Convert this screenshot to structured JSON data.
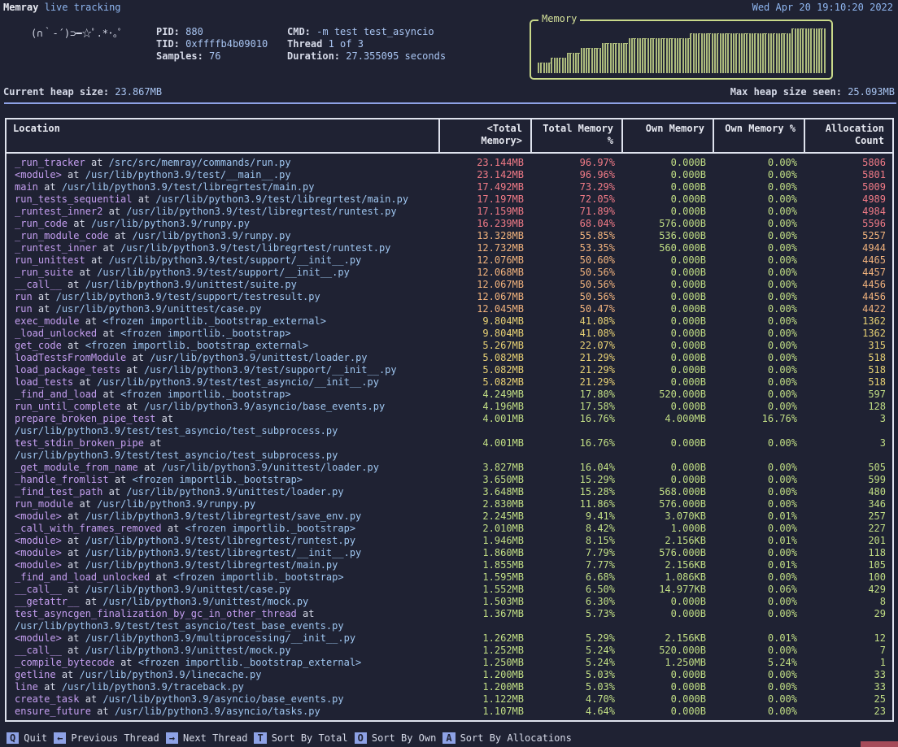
{
  "header": {
    "app_name": "Memray",
    "app_subtitle": "live tracking",
    "datetime": "Wed Apr 20 19:10:20 2022",
    "logo_text": "(∩｀-´)⊃━☆ﾟ.*･｡ﾟ",
    "pid_label": "PID:",
    "pid_value": "880",
    "tid_label": "TID:",
    "tid_value": "0xffffb4b09010",
    "samples_label": "Samples:",
    "samples_value": "76",
    "cmd_label": "CMD:",
    "cmd_value": "-m test test_asyncio",
    "thread_label": "Thread",
    "thread_value": "1 of 3",
    "duration_label": "Duration:",
    "duration_value": "27.355095 seconds"
  },
  "memory_graph": {
    "title": "Memory",
    "color": "#c9d98a"
  },
  "heap": {
    "current_label": "Current heap size:",
    "current_value": "23.867MB",
    "max_label": "Max heap size seen:",
    "max_value": "25.093MB",
    "progress_fraction": 0.951
  },
  "table": {
    "headers": [
      "Location",
      "<Total Memory>",
      "Total Memory %",
      "Own Memory",
      "Own Memory %",
      "Allocation Count"
    ],
    "rows": [
      {
        "fn": "_run_tracker",
        "path": "/src/src/memray/commands/run.py",
        "total": "23.144MB",
        "pct": "96.97%",
        "own": "0.000B",
        "ownpct": "0.00%",
        "count": "5806",
        "tone": "red"
      },
      {
        "fn": "<module>",
        "path": "/usr/lib/python3.9/test/__main__.py",
        "total": "23.142MB",
        "pct": "96.96%",
        "own": "0.000B",
        "ownpct": "0.00%",
        "count": "5801",
        "tone": "red"
      },
      {
        "fn": "main",
        "path": "/usr/lib/python3.9/test/libregrtest/main.py",
        "total": "17.492MB",
        "pct": "73.29%",
        "own": "0.000B",
        "ownpct": "0.00%",
        "count": "5009",
        "tone": "red"
      },
      {
        "fn": "run_tests_sequential",
        "path": "/usr/lib/python3.9/test/libregrtest/main.py",
        "total": "17.197MB",
        "pct": "72.05%",
        "own": "0.000B",
        "ownpct": "0.00%",
        "count": "4989",
        "tone": "red"
      },
      {
        "fn": "_runtest_inner2",
        "path": "/usr/lib/python3.9/test/libregrtest/runtest.py",
        "total": "17.159MB",
        "pct": "71.89%",
        "own": "0.000B",
        "ownpct": "0.00%",
        "count": "4984",
        "tone": "red"
      },
      {
        "fn": "_run_code",
        "path": "/usr/lib/python3.9/runpy.py",
        "total": "16.239MB",
        "pct": "68.04%",
        "own": "576.000B",
        "ownpct": "0.00%",
        "count": "5596",
        "tone": "red"
      },
      {
        "fn": "_run_module_code",
        "path": "/usr/lib/python3.9/runpy.py",
        "total": "13.328MB",
        "pct": "55.85%",
        "own": "536.000B",
        "ownpct": "0.00%",
        "count": "5257",
        "tone": "orange"
      },
      {
        "fn": "_runtest_inner",
        "path": "/usr/lib/python3.9/test/libregrtest/runtest.py",
        "total": "12.732MB",
        "pct": "53.35%",
        "own": "560.000B",
        "ownpct": "0.00%",
        "count": "4944",
        "tone": "orange"
      },
      {
        "fn": "run_unittest",
        "path": "/usr/lib/python3.9/test/support/__init__.py",
        "total": "12.076MB",
        "pct": "50.60%",
        "own": "0.000B",
        "ownpct": "0.00%",
        "count": "4465",
        "tone": "orange"
      },
      {
        "fn": "_run_suite",
        "path": "/usr/lib/python3.9/test/support/__init__.py",
        "total": "12.068MB",
        "pct": "50.56%",
        "own": "0.000B",
        "ownpct": "0.00%",
        "count": "4457",
        "tone": "orange"
      },
      {
        "fn": "__call__",
        "path": "/usr/lib/python3.9/unittest/suite.py",
        "total": "12.067MB",
        "pct": "50.56%",
        "own": "0.000B",
        "ownpct": "0.00%",
        "count": "4456",
        "tone": "orange"
      },
      {
        "fn": "run",
        "path": "/usr/lib/python3.9/test/support/testresult.py",
        "total": "12.067MB",
        "pct": "50.56%",
        "own": "0.000B",
        "ownpct": "0.00%",
        "count": "4456",
        "tone": "orange"
      },
      {
        "fn": "run",
        "path": "/usr/lib/python3.9/unittest/case.py",
        "total": "12.045MB",
        "pct": "50.47%",
        "own": "0.000B",
        "ownpct": "0.00%",
        "count": "4422",
        "tone": "orange"
      },
      {
        "fn": "exec_module",
        "path": "<frozen importlib._bootstrap_external>",
        "total": "9.804MB",
        "pct": "41.08%",
        "own": "0.000B",
        "ownpct": "0.00%",
        "count": "1362",
        "tone": "yellow"
      },
      {
        "fn": "_load_unlocked",
        "path": "<frozen importlib._bootstrap>",
        "total": "9.804MB",
        "pct": "41.08%",
        "own": "0.000B",
        "ownpct": "0.00%",
        "count": "1362",
        "tone": "yellow"
      },
      {
        "fn": "get_code",
        "path": "<frozen importlib._bootstrap_external>",
        "total": "5.267MB",
        "pct": "22.07%",
        "own": "0.000B",
        "ownpct": "0.00%",
        "count": "315",
        "tone": "yellow"
      },
      {
        "fn": "loadTestsFromModule",
        "path": "/usr/lib/python3.9/unittest/loader.py",
        "total": "5.082MB",
        "pct": "21.29%",
        "own": "0.000B",
        "ownpct": "0.00%",
        "count": "518",
        "tone": "yellow"
      },
      {
        "fn": "load_package_tests",
        "path": "/usr/lib/python3.9/test/support/__init__.py",
        "total": "5.082MB",
        "pct": "21.29%",
        "own": "0.000B",
        "ownpct": "0.00%",
        "count": "518",
        "tone": "yellow"
      },
      {
        "fn": "load_tests",
        "path": "/usr/lib/python3.9/test/test_asyncio/__init__.py",
        "total": "5.082MB",
        "pct": "21.29%",
        "own": "0.000B",
        "ownpct": "0.00%",
        "count": "518",
        "tone": "yellow"
      },
      {
        "fn": "_find_and_load",
        "path": "<frozen importlib._bootstrap>",
        "total": "4.249MB",
        "pct": "17.80%",
        "own": "520.000B",
        "ownpct": "0.00%",
        "count": "597",
        "tone": "green"
      },
      {
        "fn": "run_until_complete",
        "path": "/usr/lib/python3.9/asyncio/base_events.py",
        "total": "4.196MB",
        "pct": "17.58%",
        "own": "0.000B",
        "ownpct": "0.00%",
        "count": "128",
        "tone": "green"
      },
      {
        "fn": "prepare_broken_pipe_test",
        "path": "/usr/lib/python3.9/test/test_asyncio/test_subprocess.py",
        "total": "4.001MB",
        "pct": "16.76%",
        "own": "4.000MB",
        "ownpct": "16.76%",
        "count": "3",
        "tone": "green",
        "wrap": true
      },
      {
        "fn": "test_stdin_broken_pipe",
        "path": "/usr/lib/python3.9/test/test_asyncio/test_subprocess.py",
        "total": "4.001MB",
        "pct": "16.76%",
        "own": "0.000B",
        "ownpct": "0.00%",
        "count": "3",
        "tone": "green",
        "wrap": true
      },
      {
        "fn": "_get_module_from_name",
        "path": "/usr/lib/python3.9/unittest/loader.py",
        "total": "3.827MB",
        "pct": "16.04%",
        "own": "0.000B",
        "ownpct": "0.00%",
        "count": "505",
        "tone": "green"
      },
      {
        "fn": "_handle_fromlist",
        "path": "<frozen importlib._bootstrap>",
        "total": "3.650MB",
        "pct": "15.29%",
        "own": "0.000B",
        "ownpct": "0.00%",
        "count": "599",
        "tone": "green"
      },
      {
        "fn": "_find_test_path",
        "path": "/usr/lib/python3.9/unittest/loader.py",
        "total": "3.648MB",
        "pct": "15.28%",
        "own": "568.000B",
        "ownpct": "0.00%",
        "count": "480",
        "tone": "green"
      },
      {
        "fn": "run_module",
        "path": "/usr/lib/python3.9/runpy.py",
        "total": "2.830MB",
        "pct": "11.86%",
        "own": "576.000B",
        "ownpct": "0.00%",
        "count": "346",
        "tone": "green"
      },
      {
        "fn": "<module>",
        "path": "/usr/lib/python3.9/test/libregrtest/save_env.py",
        "total": "2.245MB",
        "pct": "9.41%",
        "own": "3.070KB",
        "ownpct": "0.01%",
        "count": "257",
        "tone": "green"
      },
      {
        "fn": "_call_with_frames_removed",
        "path": "<frozen importlib._bootstrap>",
        "total": "2.010MB",
        "pct": "8.42%",
        "own": "1.000B",
        "ownpct": "0.00%",
        "count": "227",
        "tone": "green"
      },
      {
        "fn": "<module>",
        "path": "/usr/lib/python3.9/test/libregrtest/runtest.py",
        "total": "1.946MB",
        "pct": "8.15%",
        "own": "2.156KB",
        "ownpct": "0.01%",
        "count": "201",
        "tone": "green"
      },
      {
        "fn": "<module>",
        "path": "/usr/lib/python3.9/test/libregrtest/__init__.py",
        "total": "1.860MB",
        "pct": "7.79%",
        "own": "576.000B",
        "ownpct": "0.00%",
        "count": "118",
        "tone": "green"
      },
      {
        "fn": "<module>",
        "path": "/usr/lib/python3.9/test/libregrtest/main.py",
        "total": "1.855MB",
        "pct": "7.77%",
        "own": "2.156KB",
        "ownpct": "0.01%",
        "count": "105",
        "tone": "green"
      },
      {
        "fn": "_find_and_load_unlocked",
        "path": "<frozen importlib._bootstrap>",
        "total": "1.595MB",
        "pct": "6.68%",
        "own": "1.086KB",
        "ownpct": "0.00%",
        "count": "100",
        "tone": "green"
      },
      {
        "fn": "__call__",
        "path": "/usr/lib/python3.9/unittest/case.py",
        "total": "1.552MB",
        "pct": "6.50%",
        "own": "14.977KB",
        "ownpct": "0.06%",
        "count": "429",
        "tone": "green"
      },
      {
        "fn": "__getattr__",
        "path": "/usr/lib/python3.9/unittest/mock.py",
        "total": "1.503MB",
        "pct": "6.30%",
        "own": "0.000B",
        "ownpct": "0.00%",
        "count": "8",
        "tone": "green"
      },
      {
        "fn": "test_asyncgen_finalization_by_gc_in_other_thread",
        "path": "/usr/lib/python3.9/test/test_asyncio/test_base_events.py",
        "total": "1.367MB",
        "pct": "5.73%",
        "own": "0.000B",
        "ownpct": "0.00%",
        "count": "29",
        "tone": "green",
        "wrap": true
      },
      {
        "fn": "<module>",
        "path": "/usr/lib/python3.9/multiprocessing/__init__.py",
        "total": "1.262MB",
        "pct": "5.29%",
        "own": "2.156KB",
        "ownpct": "0.01%",
        "count": "12",
        "tone": "green"
      },
      {
        "fn": "__call__",
        "path": "/usr/lib/python3.9/unittest/mock.py",
        "total": "1.252MB",
        "pct": "5.24%",
        "own": "520.000B",
        "ownpct": "0.00%",
        "count": "7",
        "tone": "green"
      },
      {
        "fn": "_compile_bytecode",
        "path": "<frozen importlib._bootstrap_external>",
        "total": "1.250MB",
        "pct": "5.24%",
        "own": "1.250MB",
        "ownpct": "5.24%",
        "count": "1",
        "tone": "green"
      },
      {
        "fn": "getline",
        "path": "/usr/lib/python3.9/linecache.py",
        "total": "1.200MB",
        "pct": "5.03%",
        "own": "0.000B",
        "ownpct": "0.00%",
        "count": "33",
        "tone": "green"
      },
      {
        "fn": "line",
        "path": "/usr/lib/python3.9/traceback.py",
        "total": "1.200MB",
        "pct": "5.03%",
        "own": "0.000B",
        "ownpct": "0.00%",
        "count": "33",
        "tone": "green"
      },
      {
        "fn": "create_task",
        "path": "/usr/lib/python3.9/asyncio/base_events.py",
        "total": "1.122MB",
        "pct": "4.70%",
        "own": "0.000B",
        "ownpct": "0.00%",
        "count": "25",
        "tone": "green"
      },
      {
        "fn": "ensure_future",
        "path": "/usr/lib/python3.9/asyncio/tasks.py",
        "total": "1.107MB",
        "pct": "4.64%",
        "own": "0.000B",
        "ownpct": "0.00%",
        "count": "23",
        "tone": "green"
      }
    ],
    "at_word": "at"
  },
  "footer": {
    "keys": [
      {
        "key": "Q",
        "label": "Quit"
      },
      {
        "key": "←",
        "label": "Previous Thread"
      },
      {
        "key": "→",
        "label": "Next Thread"
      },
      {
        "key": "T",
        "label": "Sort By Total"
      },
      {
        "key": "O",
        "label": "Sort By Own"
      },
      {
        "key": "A",
        "label": "Sort By Allocations"
      }
    ]
  },
  "colors": {
    "background": "#1f2233",
    "accent": "#8ea2e6",
    "red": "#f07a86",
    "orange": "#f2b37d",
    "yellow": "#e8d174",
    "green": "#c2df85"
  }
}
